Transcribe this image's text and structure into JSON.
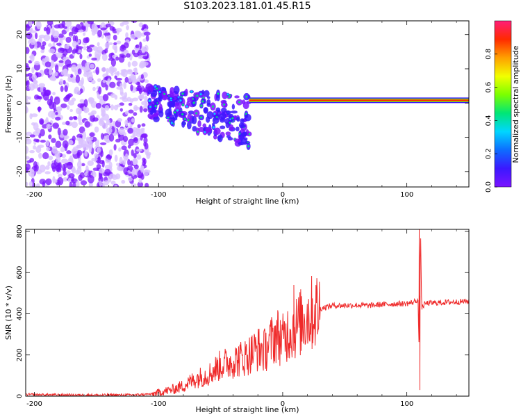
{
  "figure": {
    "title": "S103.2023.181.01.45.R15"
  },
  "colors": {
    "spectrum_ramp": [
      "#7b14ff",
      "#3b18ff",
      "#0d6cff",
      "#00d6ff",
      "#00e676",
      "#7bff00",
      "#f2ff00",
      "#ffa000",
      "#ff2a00",
      "#ff1e78"
    ],
    "snr_line": "#ef2a2a",
    "faint_purple": "#d9c2ff"
  },
  "chart_data": [
    {
      "type": "heatmap",
      "name": "spectrogram",
      "xlabel": "Height of straight line (km)",
      "ylabel": "Frequency (Hz)",
      "xlim": [
        -207,
        150
      ],
      "ylim": [
        -24.5,
        24
      ],
      "x_ticks": [
        -200,
        -100,
        0,
        100
      ],
      "y_ticks": [
        -20,
        -10,
        0,
        10,
        20
      ],
      "grid": false,
      "regions": [
        {
          "x_range": [
            -207,
            -108
          ],
          "y_range": [
            -24.5,
            24
          ],
          "pattern": "diffuse purple speckle",
          "amplitude": [
            0.0,
            0.15
          ]
        },
        {
          "x_range": [
            -108,
            -27
          ],
          "y_range": [
            -14,
            7
          ],
          "pattern": "scattered blobs with blue/cyan cores",
          "amplitude": [
            0.05,
            0.5
          ]
        },
        {
          "x_range": [
            -27,
            150
          ],
          "y_range": [
            0,
            2
          ],
          "pattern": "narrow horizontal line",
          "center_hz": 0.8,
          "amplitude": [
            0.8,
            1.0
          ]
        }
      ],
      "colorbar": {
        "label": "Normalized spectral amplitude",
        "range": [
          0,
          1
        ],
        "ticks": [
          "0.0",
          "0.2",
          "0.4",
          "0.6",
          "0.8"
        ]
      }
    },
    {
      "type": "line",
      "name": "snr",
      "xlabel": "Height of straight line (km)",
      "ylabel": "SNR (10 * v/v)",
      "xlim": [
        -207,
        150
      ],
      "ylim": [
        0,
        810
      ],
      "x_ticks": [
        -200,
        -100,
        0,
        100
      ],
      "y_ticks": [
        0,
        200,
        400,
        600,
        800
      ],
      "grid": false,
      "series": [
        {
          "x": [
            -207,
            -180,
            -150,
            -120,
            -105,
            -100,
            -90,
            -80,
            -70,
            -60,
            -50,
            -40,
            -30,
            -25,
            -20,
            -15,
            -10,
            -5,
            0,
            5,
            10,
            15,
            20,
            30,
            40,
            50,
            60,
            70,
            80,
            90,
            100,
            105,
            109,
            110,
            111,
            112,
            115,
            120,
            130,
            140,
            150
          ],
          "values": [
            8,
            6,
            5,
            6,
            10,
            18,
            30,
            50,
            85,
            105,
            150,
            170,
            190,
            210,
            230,
            220,
            260,
            300,
            270,
            320,
            330,
            360,
            390,
            425,
            440,
            440,
            442,
            440,
            445,
            448,
            450,
            455,
            470,
            200,
            810,
            430,
            450,
            452,
            455,
            458,
            460
          ],
          "peaks": [
            {
              "x": 9,
              "y": 540
            },
            {
              "x": 110,
              "y": 810
            },
            {
              "x": 110.5,
              "y": 30
            }
          ]
        }
      ]
    }
  ]
}
